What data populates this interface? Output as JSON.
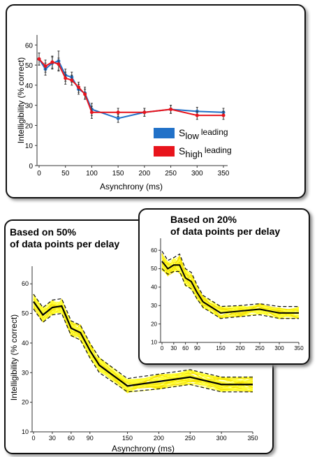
{
  "colors": {
    "blue": "#2171c8",
    "red": "#e8141c",
    "yellow": "#ffff33",
    "yellow_dark": "#f5e000"
  },
  "chart_data": [
    {
      "type": "line",
      "xlabel": "Asynchrony (ms)",
      "ylabel": "Intelligibility  (% correct)",
      "xlim": [
        0,
        350
      ],
      "ylim": [
        0,
        65
      ],
      "x_ticks": [
        0,
        50,
        100,
        150,
        200,
        250,
        300,
        350
      ],
      "y_ticks": [
        0,
        10,
        20,
        30,
        40,
        50,
        60
      ],
      "legend_position": "bottom-right",
      "series": [
        {
          "name": "S_low leading",
          "label_main": "S",
          "label_sub": "low",
          "label_tail": "leading",
          "color": "#2171c8",
          "x": [
            0,
            12,
            25,
            37,
            50,
            62,
            75,
            87,
            100,
            150,
            200,
            250,
            300,
            350
          ],
          "y": [
            53,
            48,
            51,
            52,
            45,
            44,
            38,
            36,
            28,
            23.5,
            26.5,
            28,
            27,
            26.5
          ],
          "err": [
            3,
            3,
            3,
            5,
            3,
            2.5,
            2.5,
            3,
            3,
            2,
            2,
            2,
            2,
            2
          ]
        },
        {
          "name": "S_high leading",
          "label_main": "S",
          "label_sub": "high",
          "label_tail": "leading",
          "color": "#e8141c",
          "x": [
            0,
            12,
            25,
            37,
            50,
            62,
            75,
            87,
            100,
            150,
            200,
            250,
            300,
            350
          ],
          "y": [
            53,
            49.5,
            51.5,
            50.5,
            43.5,
            42.5,
            39,
            35.5,
            26.5,
            26.5,
            26.5,
            28,
            25,
            25
          ],
          "err": [
            3,
            3,
            3,
            3,
            3,
            2.5,
            2.5,
            2.5,
            3,
            2,
            2,
            2,
            2,
            2
          ]
        }
      ]
    },
    {
      "type": "line",
      "title_lines": [
        "Based on 50%",
        "of data points per delay"
      ],
      "xlabel": "Asynchrony (ms)",
      "ylabel": "Intelligibility  (% correct)",
      "xlim": [
        0,
        350
      ],
      "ylim": [
        10,
        65
      ],
      "x_ticks": [
        0,
        30,
        60,
        90,
        150,
        200,
        250,
        300,
        350
      ],
      "y_ticks": [
        10,
        20,
        30,
        40,
        50,
        60
      ],
      "mean": {
        "x": [
          0,
          15,
          30,
          45,
          60,
          75,
          90,
          105,
          150,
          200,
          250,
          300,
          350
        ],
        "y": [
          54,
          49.5,
          52,
          52.5,
          45,
          43.5,
          37.5,
          32.5,
          25.5,
          27,
          28.5,
          26,
          26
        ]
      },
      "band_upper": [
        56.5,
        52,
        54.5,
        55,
        47.5,
        46,
        40,
        35,
        28,
        29.5,
        31,
        28.5,
        28.5
      ],
      "band_lower": [
        51.5,
        47,
        49.5,
        50,
        42.5,
        41,
        35,
        30,
        23.5,
        24.5,
        26,
        23.5,
        23.5
      ]
    },
    {
      "type": "line",
      "title_lines": [
        "Based on 20%",
        "of data points per delay"
      ],
      "xlim": [
        0,
        350
      ],
      "ylim": [
        10,
        65
      ],
      "x_ticks": [
        0,
        30,
        60,
        90,
        150,
        200,
        250,
        300,
        350
      ],
      "y_ticks": [
        10,
        20,
        30,
        40,
        50,
        60
      ],
      "mean": {
        "x": [
          0,
          15,
          30,
          45,
          60,
          75,
          90,
          105,
          150,
          200,
          250,
          300,
          350
        ],
        "y": [
          54,
          50,
          52,
          52,
          45,
          43,
          37,
          32,
          26,
          27,
          28,
          26,
          26
        ]
      },
      "band_upper": [
        59.5,
        54.5,
        56,
        58,
        50,
        48,
        41,
        35.5,
        29.5,
        30,
        31,
        29.5,
        29.5
      ],
      "band_lower": [
        50,
        47,
        48.5,
        48.5,
        41,
        39,
        33.5,
        29,
        23,
        24,
        25,
        23,
        23
      ]
    }
  ]
}
